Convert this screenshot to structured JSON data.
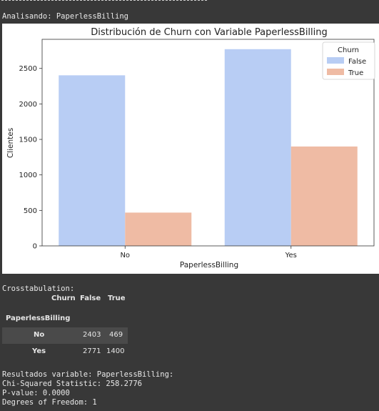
{
  "header": {
    "analyzing_label": "Analisando: PaperlessBilling"
  },
  "chart_data": {
    "type": "bar",
    "title": "Distribución de Churn con Variable PaperlessBilling",
    "xlabel": "PaperlessBilling",
    "ylabel": "Clientes",
    "categories": [
      "No",
      "Yes"
    ],
    "series": [
      {
        "name": "False",
        "values": [
          2403,
          2771
        ],
        "color": "#b8cdf4"
      },
      {
        "name": "True",
        "values": [
          469,
          1400
        ],
        "color": "#efbba4"
      }
    ],
    "ylim": [
      0,
      2910
    ],
    "yticks": [
      0,
      500,
      1000,
      1500,
      2000,
      2500
    ],
    "ytick_labels": [
      "0",
      "500",
      "1000",
      "1500",
      "2000",
      "2500"
    ],
    "legend": {
      "title": "Churn",
      "placement": "top-right"
    },
    "grid": false
  },
  "crosstab": {
    "caption": "Crosstabulation:",
    "corner": "Churn",
    "columns": [
      "False",
      "True"
    ],
    "index_name": "PaperlessBilling",
    "rows": [
      {
        "label": "No",
        "values": [
          "2403",
          "469"
        ]
      },
      {
        "label": "Yes",
        "values": [
          "2771",
          "1400"
        ]
      }
    ]
  },
  "results": {
    "heading": "Resultados variable: PaperlessBilling:",
    "chi_squared": "Chi-Squared Statistic: 258.2776",
    "p_value": "P-value: 0.0000",
    "dof": "Degrees of Freedom: 1"
  }
}
